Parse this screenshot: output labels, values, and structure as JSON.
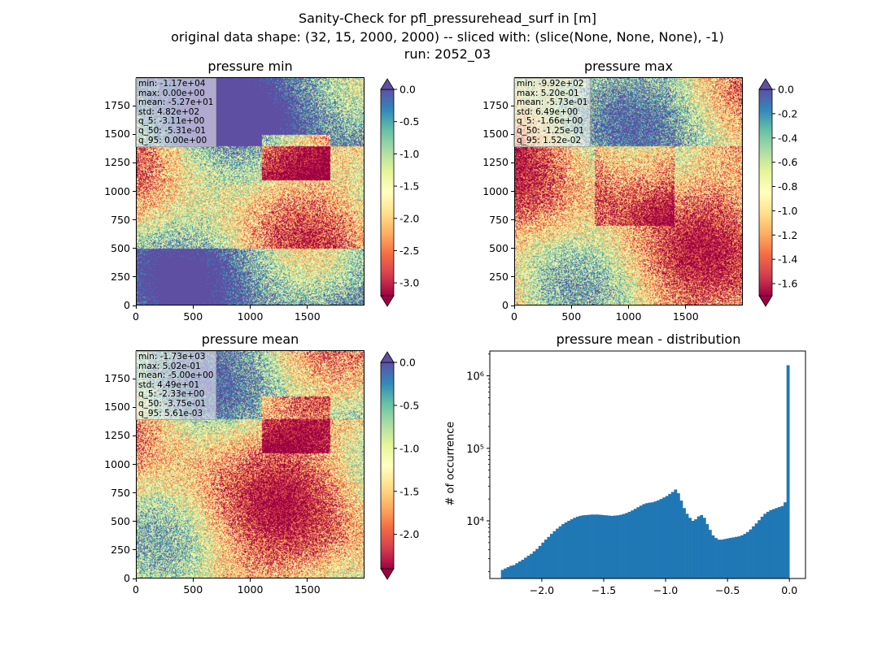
{
  "suptitle": {
    "line1": "Sanity-Check for pfl_pressurehead_surf in [m]",
    "line2": "original data shape: (32, 15, 2000, 2000) -- sliced with: (slice(None, None, None), -1)",
    "line3": "run: 2052_03"
  },
  "colormap": [
    "#9e0142",
    "#d53e4f",
    "#f46d43",
    "#fdae61",
    "#fee08b",
    "#ffffbf",
    "#e6f598",
    "#abdda4",
    "#66c2a5",
    "#3288bd",
    "#5e4fa2"
  ],
  "chart_data": [
    {
      "type": "heatmap",
      "title": "pressure min",
      "x_ticks": [
        "0",
        "500",
        "1000",
        "1500"
      ],
      "y_ticks": [
        "0",
        "250",
        "500",
        "750",
        "1000",
        "1250",
        "1500",
        "1750"
      ],
      "colorbar": {
        "min": -3.2,
        "max": 0.0,
        "cmap_range": [
          -3.2,
          0.0
        ],
        "ticks": [
          "0.0",
          "-0.5",
          "-1.0",
          "-1.5",
          "-2.0",
          "-2.5",
          "-3.0"
        ],
        "tick_values": [
          0,
          -0.5,
          -1.0,
          -1.5,
          -2.0,
          -2.5,
          -3.0
        ],
        "extend": "both"
      },
      "stats": [
        "min: -1.17e+04",
        "max: 0.00e+00",
        "mean: -5.27e+01",
        "std: 4.82e+02",
        "q_5: -3.11e+00",
        "q_50: -5.31e-01",
        "q_95: 0.00e+00"
      ]
    },
    {
      "type": "heatmap",
      "title": "pressure max",
      "x_ticks": [
        "0",
        "500",
        "1000",
        "1500"
      ],
      "y_ticks": [
        "0",
        "250",
        "500",
        "750",
        "1000",
        "1250",
        "1500",
        "1750"
      ],
      "colorbar": {
        "min": -1.7,
        "max": 0.0,
        "ticks": [
          "0.0",
          "-0.2",
          "-0.4",
          "-0.6",
          "-0.8",
          "-1.0",
          "-1.2",
          "-1.4",
          "-1.6"
        ],
        "tick_values": [
          0,
          -0.2,
          -0.4,
          -0.6,
          -0.8,
          -1.0,
          -1.2,
          -1.4,
          -1.6
        ],
        "extend": "both"
      },
      "stats": [
        "min: -9.92e+02",
        "max: 5.20e-01",
        "mean: -5.73e-01",
        "std: 6.49e+00",
        "q_5: -1.66e+00",
        "q_50: -1.25e-01",
        "q_95: 1.52e-02"
      ]
    },
    {
      "type": "heatmap",
      "title": "pressure mean",
      "x_ticks": [
        "0",
        "500",
        "1000",
        "1500"
      ],
      "y_ticks": [
        "0",
        "250",
        "500",
        "750",
        "1000",
        "1250",
        "1500",
        "1750"
      ],
      "colorbar": {
        "min": -2.4,
        "max": 0.0,
        "ticks": [
          "0.0",
          "-0.5",
          "-1.0",
          "-1.5",
          "-2.0"
        ],
        "tick_values": [
          0,
          -0.5,
          -1.0,
          -1.5,
          -2.0
        ],
        "extend": "both"
      },
      "stats": [
        "min: -1.73e+03",
        "max: 5.02e-01",
        "mean: -5.00e+00",
        "std: 4.49e+01",
        "q_5: -2.33e+00",
        "q_50: -3.75e-01",
        "q_95: 5.61e-03"
      ]
    },
    {
      "type": "bar",
      "title": "pressure mean - distribution",
      "ylabel": "# of occurrence",
      "yscale": "log",
      "x_ticks": [
        "−2.0",
        "−1.5",
        "−1.0",
        "−0.5",
        "0.0"
      ],
      "x_tick_values": [
        -2.0,
        -1.5,
        -1.0,
        -0.5,
        0.0
      ],
      "y_ticks": [
        "10⁴",
        "10⁵",
        "10⁶"
      ],
      "y_tick_values": [
        10000,
        100000,
        1000000
      ],
      "xlim": [
        -2.42,
        0.13
      ],
      "ylim": [
        1600,
        2200000
      ],
      "color": "#1f77b4",
      "bin_edges_range": [
        -2.33,
        0.0
      ],
      "bin_count": 100,
      "values": [
        2100,
        2200,
        2300,
        2400,
        2450,
        2600,
        2750,
        2900,
        3100,
        3300,
        3500,
        3800,
        4100,
        4500,
        5000,
        5500,
        6000,
        6600,
        7200,
        7800,
        8400,
        9000,
        9500,
        10000,
        10500,
        11000,
        11400,
        11700,
        11900,
        12000,
        12100,
        12200,
        12200,
        12200,
        12100,
        12000,
        11900,
        11800,
        11700,
        11800,
        11900,
        12100,
        12400,
        12800,
        13300,
        13900,
        14600,
        15400,
        16200,
        17000,
        17500,
        17800,
        18000,
        18500,
        19200,
        20000,
        21000,
        22000,
        23500,
        25000,
        27000,
        24000,
        19000,
        15000,
        12500,
        11000,
        10000,
        10500,
        11500,
        12000,
        11000,
        9000,
        7500,
        6300,
        5800,
        5500,
        5500,
        5600,
        5700,
        5800,
        5900,
        6000,
        6100,
        6300,
        6600,
        7000,
        7600,
        8400,
        9200,
        10200,
        11400,
        12500,
        13300,
        14000,
        14500,
        15000,
        15500,
        16000,
        18000,
        1400000
      ]
    }
  ]
}
